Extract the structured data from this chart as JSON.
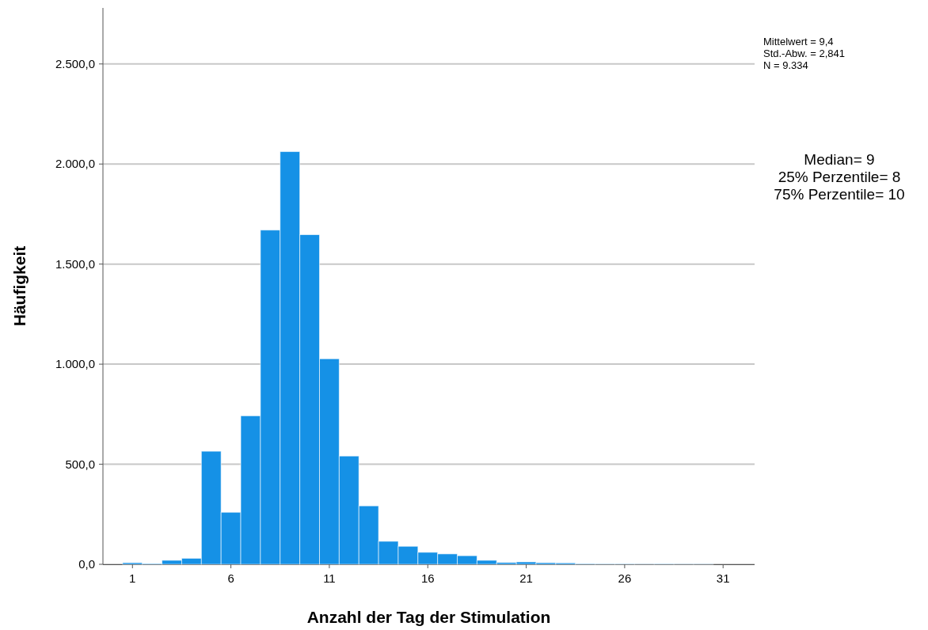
{
  "chart_data": {
    "type": "histogram",
    "xlabel": "Anzahl der Tag der Stimulation",
    "ylabel": "Häufigkeit",
    "bins": [
      0.5,
      1.5,
      2.5,
      3.5,
      4.5,
      5.5,
      6.5,
      7.5,
      8.5,
      9.5,
      10.5,
      11.5,
      12.5,
      13.5,
      14.5,
      15.5,
      16.5,
      17.5,
      18.5,
      19.5,
      20.5,
      21.5,
      22.5,
      23.5,
      24.5,
      25.5,
      26.5,
      27.5,
      28.5,
      29.5,
      30.5,
      31.5
    ],
    "values": [
      8,
      4,
      20,
      30,
      565,
      260,
      742,
      1670,
      2062,
      1647,
      1027,
      541,
      292,
      115,
      90,
      60,
      52,
      43,
      20,
      9,
      12,
      8,
      7,
      3,
      2,
      2,
      1,
      2,
      1,
      1,
      0
    ],
    "color": "#1591e6",
    "xlim": [
      -0.5,
      32.6
    ],
    "xticks": [
      1,
      6,
      11,
      16,
      21,
      26,
      31
    ],
    "ylim": [
      0,
      2780
    ],
    "yticks": [
      {
        "value": 0,
        "label": "0,0"
      },
      {
        "value": 500,
        "label": "500,0"
      },
      {
        "value": 1000,
        "label": "1.000,0"
      },
      {
        "value": 1500,
        "label": "1.500,0"
      },
      {
        "value": 2000,
        "label": "2.000,0"
      },
      {
        "value": 2500,
        "label": "2.500,0"
      }
    ],
    "grid": "y",
    "annotations": [
      "Mittelwert = 9,4\nStd.-Abw. = 2,841\nN = 9.334",
      "Median= 9\n25% Perzentile= 8\n75% Perzentile= 10"
    ]
  }
}
